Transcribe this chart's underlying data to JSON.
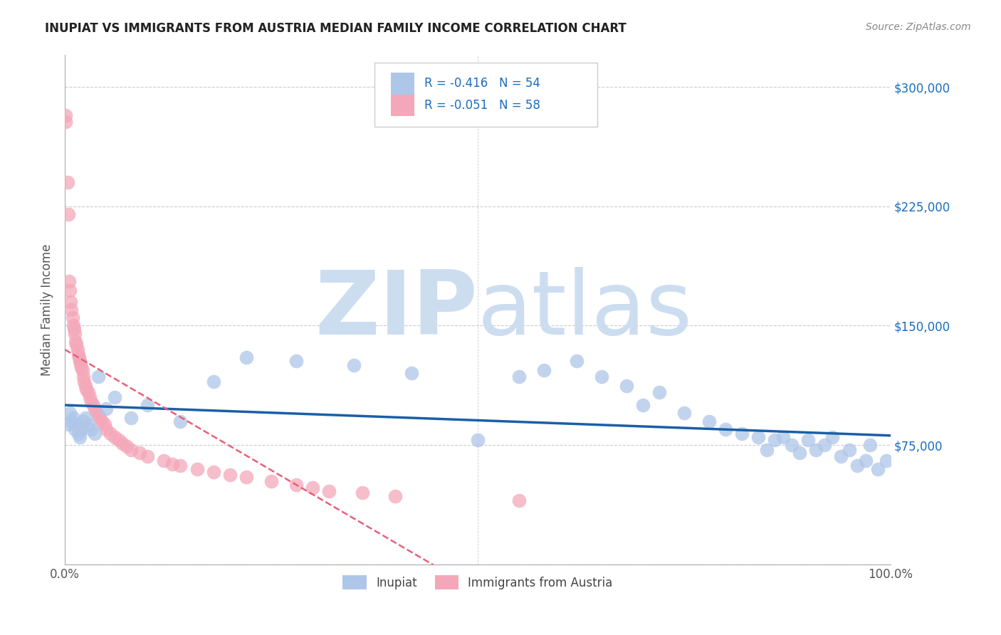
{
  "title": "INUPIAT VS IMMIGRANTS FROM AUSTRIA MEDIAN FAMILY INCOME CORRELATION CHART",
  "source": "Source: ZipAtlas.com",
  "ylabel": "Median Family Income",
  "xlim": [
    0.0,
    1.0
  ],
  "ylim": [
    0,
    320000
  ],
  "yticks": [
    0,
    75000,
    150000,
    225000,
    300000
  ],
  "ytick_labels": [
    "",
    "$75,000",
    "$150,000",
    "$225,000",
    "$300,000"
  ],
  "xtick_labels": [
    "0.0%",
    "100.0%"
  ],
  "inupiat_color": "#aec6e8",
  "austria_color": "#f4a7b9",
  "trend_inupiat_color": "#1a5fa8",
  "trend_austria_color": "#e8607a",
  "watermark_zip": "ZIP",
  "watermark_atlas": "atlas",
  "watermark_color": "#ccddf0",
  "background_color": "#ffffff",
  "inupiat_x": [
    0.004,
    0.006,
    0.008,
    0.01,
    0.012,
    0.014,
    0.016,
    0.018,
    0.02,
    0.022,
    0.025,
    0.028,
    0.032,
    0.036,
    0.04,
    0.05,
    0.06,
    0.08,
    0.1,
    0.14,
    0.18,
    0.22,
    0.28,
    0.35,
    0.42,
    0.5,
    0.55,
    0.58,
    0.62,
    0.65,
    0.68,
    0.7,
    0.72,
    0.75,
    0.78,
    0.8,
    0.82,
    0.84,
    0.85,
    0.86,
    0.87,
    0.88,
    0.89,
    0.9,
    0.91,
    0.92,
    0.93,
    0.94,
    0.95,
    0.96,
    0.97,
    0.975,
    0.985,
    0.995
  ],
  "inupiat_y": [
    88000,
    95000,
    90000,
    92000,
    85000,
    88000,
    82000,
    80000,
    85000,
    90000,
    92000,
    88000,
    85000,
    82000,
    118000,
    98000,
    105000,
    92000,
    100000,
    90000,
    115000,
    130000,
    128000,
    125000,
    120000,
    78000,
    118000,
    122000,
    128000,
    118000,
    112000,
    100000,
    108000,
    95000,
    90000,
    85000,
    82000,
    80000,
    72000,
    78000,
    80000,
    75000,
    70000,
    78000,
    72000,
    75000,
    80000,
    68000,
    72000,
    62000,
    65000,
    75000,
    60000,
    65000
  ],
  "austria_x": [
    0.001,
    0.001,
    0.003,
    0.004,
    0.005,
    0.006,
    0.007,
    0.008,
    0.009,
    0.01,
    0.011,
    0.012,
    0.013,
    0.014,
    0.015,
    0.016,
    0.017,
    0.018,
    0.019,
    0.02,
    0.021,
    0.022,
    0.023,
    0.025,
    0.026,
    0.028,
    0.03,
    0.032,
    0.034,
    0.036,
    0.038,
    0.04,
    0.042,
    0.045,
    0.048,
    0.05,
    0.055,
    0.06,
    0.065,
    0.07,
    0.075,
    0.08,
    0.09,
    0.1,
    0.12,
    0.13,
    0.14,
    0.16,
    0.18,
    0.2,
    0.22,
    0.25,
    0.28,
    0.3,
    0.32,
    0.36,
    0.4,
    0.55
  ],
  "austria_y": [
    282000,
    278000,
    240000,
    220000,
    178000,
    172000,
    165000,
    160000,
    155000,
    150000,
    148000,
    145000,
    140000,
    138000,
    135000,
    132000,
    130000,
    128000,
    126000,
    124000,
    122000,
    118000,
    115000,
    112000,
    110000,
    108000,
    105000,
    102000,
    100000,
    98000,
    96000,
    94000,
    92000,
    90000,
    88000,
    85000,
    82000,
    80000,
    78000,
    76000,
    74000,
    72000,
    70000,
    68000,
    65000,
    63000,
    62000,
    60000,
    58000,
    56000,
    55000,
    52000,
    50000,
    48000,
    46000,
    45000,
    43000,
    40000
  ]
}
